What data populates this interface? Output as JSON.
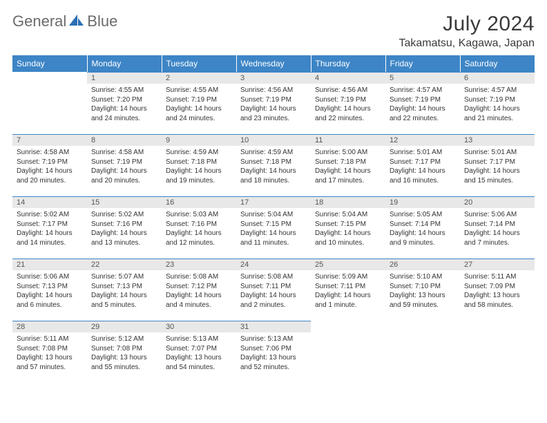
{
  "brand": {
    "part1": "General",
    "part2": "Blue"
  },
  "title": "July 2024",
  "location": "Takamatsu, Kagawa, Japan",
  "colors": {
    "header_bg": "#3d85c6",
    "header_text": "#ffffff",
    "daynum_bg": "#e8e8e8",
    "border": "#3d85c6"
  },
  "day_headers": [
    "Sunday",
    "Monday",
    "Tuesday",
    "Wednesday",
    "Thursday",
    "Friday",
    "Saturday"
  ],
  "weeks": [
    [
      {
        "n": "",
        "sunrise": "",
        "sunset": "",
        "daylight": ""
      },
      {
        "n": "1",
        "sunrise": "Sunrise: 4:55 AM",
        "sunset": "Sunset: 7:20 PM",
        "daylight": "Daylight: 14 hours and 24 minutes."
      },
      {
        "n": "2",
        "sunrise": "Sunrise: 4:55 AM",
        "sunset": "Sunset: 7:19 PM",
        "daylight": "Daylight: 14 hours and 24 minutes."
      },
      {
        "n": "3",
        "sunrise": "Sunrise: 4:56 AM",
        "sunset": "Sunset: 7:19 PM",
        "daylight": "Daylight: 14 hours and 23 minutes."
      },
      {
        "n": "4",
        "sunrise": "Sunrise: 4:56 AM",
        "sunset": "Sunset: 7:19 PM",
        "daylight": "Daylight: 14 hours and 22 minutes."
      },
      {
        "n": "5",
        "sunrise": "Sunrise: 4:57 AM",
        "sunset": "Sunset: 7:19 PM",
        "daylight": "Daylight: 14 hours and 22 minutes."
      },
      {
        "n": "6",
        "sunrise": "Sunrise: 4:57 AM",
        "sunset": "Sunset: 7:19 PM",
        "daylight": "Daylight: 14 hours and 21 minutes."
      }
    ],
    [
      {
        "n": "7",
        "sunrise": "Sunrise: 4:58 AM",
        "sunset": "Sunset: 7:19 PM",
        "daylight": "Daylight: 14 hours and 20 minutes."
      },
      {
        "n": "8",
        "sunrise": "Sunrise: 4:58 AM",
        "sunset": "Sunset: 7:19 PM",
        "daylight": "Daylight: 14 hours and 20 minutes."
      },
      {
        "n": "9",
        "sunrise": "Sunrise: 4:59 AM",
        "sunset": "Sunset: 7:18 PM",
        "daylight": "Daylight: 14 hours and 19 minutes."
      },
      {
        "n": "10",
        "sunrise": "Sunrise: 4:59 AM",
        "sunset": "Sunset: 7:18 PM",
        "daylight": "Daylight: 14 hours and 18 minutes."
      },
      {
        "n": "11",
        "sunrise": "Sunrise: 5:00 AM",
        "sunset": "Sunset: 7:18 PM",
        "daylight": "Daylight: 14 hours and 17 minutes."
      },
      {
        "n": "12",
        "sunrise": "Sunrise: 5:01 AM",
        "sunset": "Sunset: 7:17 PM",
        "daylight": "Daylight: 14 hours and 16 minutes."
      },
      {
        "n": "13",
        "sunrise": "Sunrise: 5:01 AM",
        "sunset": "Sunset: 7:17 PM",
        "daylight": "Daylight: 14 hours and 15 minutes."
      }
    ],
    [
      {
        "n": "14",
        "sunrise": "Sunrise: 5:02 AM",
        "sunset": "Sunset: 7:17 PM",
        "daylight": "Daylight: 14 hours and 14 minutes."
      },
      {
        "n": "15",
        "sunrise": "Sunrise: 5:02 AM",
        "sunset": "Sunset: 7:16 PM",
        "daylight": "Daylight: 14 hours and 13 minutes."
      },
      {
        "n": "16",
        "sunrise": "Sunrise: 5:03 AM",
        "sunset": "Sunset: 7:16 PM",
        "daylight": "Daylight: 14 hours and 12 minutes."
      },
      {
        "n": "17",
        "sunrise": "Sunrise: 5:04 AM",
        "sunset": "Sunset: 7:15 PM",
        "daylight": "Daylight: 14 hours and 11 minutes."
      },
      {
        "n": "18",
        "sunrise": "Sunrise: 5:04 AM",
        "sunset": "Sunset: 7:15 PM",
        "daylight": "Daylight: 14 hours and 10 minutes."
      },
      {
        "n": "19",
        "sunrise": "Sunrise: 5:05 AM",
        "sunset": "Sunset: 7:14 PM",
        "daylight": "Daylight: 14 hours and 9 minutes."
      },
      {
        "n": "20",
        "sunrise": "Sunrise: 5:06 AM",
        "sunset": "Sunset: 7:14 PM",
        "daylight": "Daylight: 14 hours and 7 minutes."
      }
    ],
    [
      {
        "n": "21",
        "sunrise": "Sunrise: 5:06 AM",
        "sunset": "Sunset: 7:13 PM",
        "daylight": "Daylight: 14 hours and 6 minutes."
      },
      {
        "n": "22",
        "sunrise": "Sunrise: 5:07 AM",
        "sunset": "Sunset: 7:13 PM",
        "daylight": "Daylight: 14 hours and 5 minutes."
      },
      {
        "n": "23",
        "sunrise": "Sunrise: 5:08 AM",
        "sunset": "Sunset: 7:12 PM",
        "daylight": "Daylight: 14 hours and 4 minutes."
      },
      {
        "n": "24",
        "sunrise": "Sunrise: 5:08 AM",
        "sunset": "Sunset: 7:11 PM",
        "daylight": "Daylight: 14 hours and 2 minutes."
      },
      {
        "n": "25",
        "sunrise": "Sunrise: 5:09 AM",
        "sunset": "Sunset: 7:11 PM",
        "daylight": "Daylight: 14 hours and 1 minute."
      },
      {
        "n": "26",
        "sunrise": "Sunrise: 5:10 AM",
        "sunset": "Sunset: 7:10 PM",
        "daylight": "Daylight: 13 hours and 59 minutes."
      },
      {
        "n": "27",
        "sunrise": "Sunrise: 5:11 AM",
        "sunset": "Sunset: 7:09 PM",
        "daylight": "Daylight: 13 hours and 58 minutes."
      }
    ],
    [
      {
        "n": "28",
        "sunrise": "Sunrise: 5:11 AM",
        "sunset": "Sunset: 7:08 PM",
        "daylight": "Daylight: 13 hours and 57 minutes."
      },
      {
        "n": "29",
        "sunrise": "Sunrise: 5:12 AM",
        "sunset": "Sunset: 7:08 PM",
        "daylight": "Daylight: 13 hours and 55 minutes."
      },
      {
        "n": "30",
        "sunrise": "Sunrise: 5:13 AM",
        "sunset": "Sunset: 7:07 PM",
        "daylight": "Daylight: 13 hours and 54 minutes."
      },
      {
        "n": "31",
        "sunrise": "Sunrise: 5:13 AM",
        "sunset": "Sunset: 7:06 PM",
        "daylight": "Daylight: 13 hours and 52 minutes."
      },
      {
        "n": "",
        "sunrise": "",
        "sunset": "",
        "daylight": ""
      },
      {
        "n": "",
        "sunrise": "",
        "sunset": "",
        "daylight": ""
      },
      {
        "n": "",
        "sunrise": "",
        "sunset": "",
        "daylight": ""
      }
    ]
  ]
}
